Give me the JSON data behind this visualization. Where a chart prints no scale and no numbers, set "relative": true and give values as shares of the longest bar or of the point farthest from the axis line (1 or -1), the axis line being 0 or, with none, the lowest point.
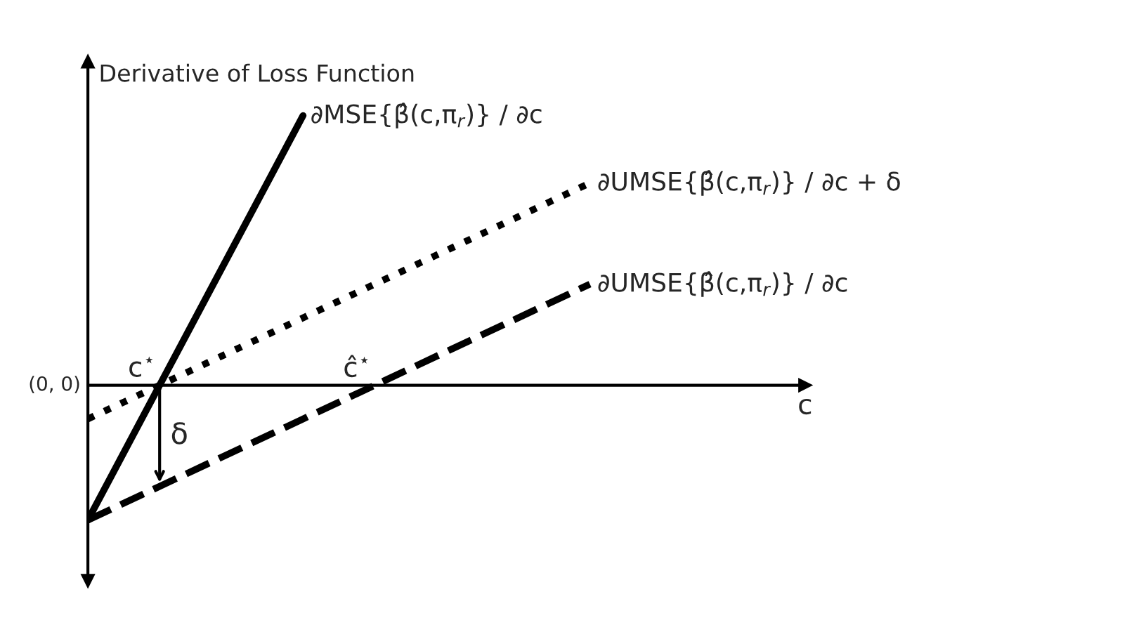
{
  "chart_data": {
    "type": "line",
    "relative": true,
    "ylabel": "Derivative of Loss Function",
    "xlabel": "c",
    "tick_labels": false,
    "categories": [
      null,
      null,
      null,
      null,
      null,
      null,
      null,
      null,
      null,
      null,
      null
    ],
    "series": [
      {
        "name": "∂MSE{β̂(c,π$_{r}$)} / ∂c",
        "color": "#000000",
        "line_style": "solid",
        "values": [
          -0.5,
          0,
          0.5,
          1.0,
          null,
          null,
          null,
          null,
          null,
          null,
          null
        ]
      },
      {
        "name": "∂UMSE{β̂(c,π$_{r}$)} / ∂c + δ",
        "color": "#000000",
        "line_style": "dotted",
        "values": [
          -0.125,
          0,
          0.125,
          0.25,
          0.375,
          0.5,
          0.625,
          0.75,
          null,
          null,
          null
        ]
      },
      {
        "name": "∂UMSE{β̂(c,π$_{r}$)} / ∂c",
        "color": "#000000",
        "line_style": "dashed",
        "values": [
          -0.5,
          -0.375,
          -0.25,
          -0.125,
          0,
          0.125,
          0.25,
          0.375,
          null,
          null,
          null
        ]
      }
    ],
    "annotations": [
      "(0, 0)",
      "c$^{⋆}$",
      "ĉ$^{⋆}$",
      "δ"
    ]
  }
}
